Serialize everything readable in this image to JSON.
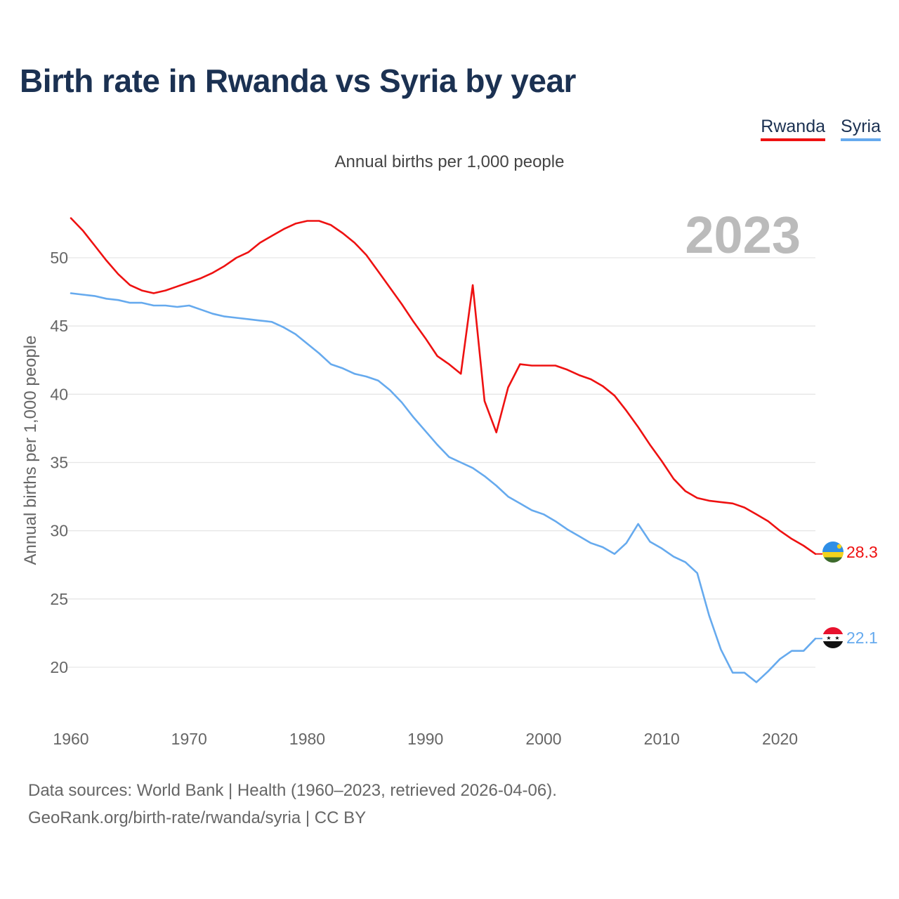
{
  "title": "Birth rate in Rwanda vs Syria by year",
  "subtitle": "Annual births per 1,000 people",
  "legend": [
    {
      "name": "Rwanda",
      "color": "#ee1111"
    },
    {
      "name": "Syria",
      "color": "#66aaee"
    }
  ],
  "year_label": "2023",
  "source": {
    "line1": "Data sources: World Bank | Health (1960–2023, retrieved 2026-04-06).",
    "line2": "GeoRank.org/birth-rate/rwanda/syria | CC BY"
  },
  "chart_data": {
    "type": "line",
    "title": "Birth rate in Rwanda vs Syria by year",
    "xlabel": "",
    "ylabel": "Annual births per 1,000 people",
    "xlim": [
      1960,
      2023
    ],
    "ylim": [
      15.5,
      53
    ],
    "x_ticks": [
      1960,
      1970,
      1980,
      1990,
      2000,
      2010,
      2020
    ],
    "y_ticks": [
      20,
      25,
      30,
      35,
      40,
      45,
      50
    ],
    "grid": true,
    "legend_position": "top-right",
    "x": [
      1960,
      1961,
      1962,
      1963,
      1964,
      1965,
      1966,
      1967,
      1968,
      1969,
      1970,
      1971,
      1972,
      1973,
      1974,
      1975,
      1976,
      1977,
      1978,
      1979,
      1980,
      1981,
      1982,
      1983,
      1984,
      1985,
      1986,
      1987,
      1988,
      1989,
      1990,
      1991,
      1992,
      1993,
      1994,
      1995,
      1996,
      1997,
      1998,
      1999,
      2000,
      2001,
      2002,
      2003,
      2004,
      2005,
      2006,
      2007,
      2008,
      2009,
      2010,
      2011,
      2012,
      2013,
      2014,
      2015,
      2016,
      2017,
      2018,
      2019,
      2020,
      2021,
      2022,
      2023
    ],
    "series": [
      {
        "name": "Rwanda",
        "color": "#ee1111",
        "end_label": "28.3",
        "values": [
          52.9,
          52.0,
          50.9,
          49.8,
          48.8,
          48.0,
          47.6,
          47.4,
          47.6,
          47.9,
          48.2,
          48.5,
          48.9,
          49.4,
          50.0,
          50.4,
          51.1,
          51.6,
          52.1,
          52.5,
          52.7,
          52.7,
          52.4,
          51.8,
          51.1,
          50.2,
          49.0,
          47.8,
          46.6,
          45.3,
          44.1,
          42.8,
          42.2,
          41.5,
          48.0,
          39.5,
          37.2,
          40.5,
          42.2,
          42.1,
          42.1,
          42.1,
          41.8,
          41.4,
          41.1,
          40.6,
          39.9,
          38.8,
          37.6,
          36.3,
          35.1,
          33.8,
          32.9,
          32.4,
          32.2,
          32.1,
          32.0,
          31.7,
          31.2,
          30.7,
          30.0,
          29.4,
          28.9,
          28.3
        ]
      },
      {
        "name": "Syria",
        "color": "#66aaee",
        "end_label": "22.1",
        "values": [
          47.4,
          47.3,
          47.2,
          47.0,
          46.9,
          46.7,
          46.7,
          46.5,
          46.5,
          46.4,
          46.5,
          46.2,
          45.9,
          45.7,
          45.6,
          45.5,
          45.4,
          45.3,
          44.9,
          44.4,
          43.7,
          43.0,
          42.2,
          41.9,
          41.5,
          41.3,
          41.0,
          40.3,
          39.4,
          38.3,
          37.3,
          36.3,
          35.4,
          35.0,
          34.6,
          34.0,
          33.3,
          32.5,
          32.0,
          31.5,
          31.2,
          30.7,
          30.1,
          29.6,
          29.1,
          28.8,
          28.3,
          29.1,
          30.5,
          29.2,
          28.7,
          28.1,
          27.7,
          26.9,
          23.8,
          21.3,
          19.6,
          19.6,
          18.9,
          19.7,
          20.6,
          21.2,
          21.2,
          22.1
        ]
      }
    ]
  }
}
